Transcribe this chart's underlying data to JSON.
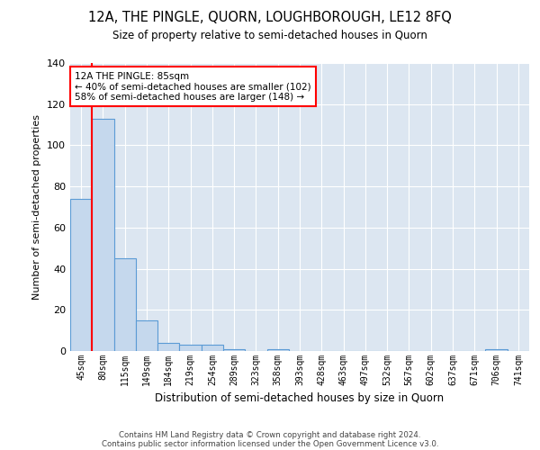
{
  "title": "12A, THE PINGLE, QUORN, LOUGHBOROUGH, LE12 8FQ",
  "subtitle": "Size of property relative to semi-detached houses in Quorn",
  "xlabel": "Distribution of semi-detached houses by size in Quorn",
  "ylabel": "Number of semi-detached properties",
  "footer1": "Contains HM Land Registry data © Crown copyright and database right 2024.",
  "footer2": "Contains public sector information licensed under the Open Government Licence v3.0.",
  "bar_labels": [
    "45sqm",
    "80sqm",
    "115sqm",
    "149sqm",
    "184sqm",
    "219sqm",
    "254sqm",
    "289sqm",
    "323sqm",
    "358sqm",
    "393sqm",
    "428sqm",
    "463sqm",
    "497sqm",
    "532sqm",
    "567sqm",
    "602sqm",
    "637sqm",
    "671sqm",
    "706sqm",
    "741sqm"
  ],
  "bar_values": [
    74,
    113,
    45,
    15,
    4,
    3,
    3,
    1,
    0,
    1,
    0,
    0,
    0,
    0,
    0,
    0,
    0,
    0,
    0,
    1,
    0
  ],
  "bar_color": "#c5d8ed",
  "bar_edge_color": "#5b9bd5",
  "background_color": "#dce6f1",
  "grid_color": "#ffffff",
  "annotation_box_color": "#ff0000",
  "property_line_color": "#ff0000",
  "property_bin_index": 1,
  "annotation_title": "12A THE PINGLE: 85sqm",
  "annotation_line1": "← 40% of semi-detached houses are smaller (102)",
  "annotation_line2": "58% of semi-detached houses are larger (148) →",
  "ylim": [
    0,
    140
  ],
  "yticks": [
    0,
    20,
    40,
    60,
    80,
    100,
    120,
    140
  ]
}
